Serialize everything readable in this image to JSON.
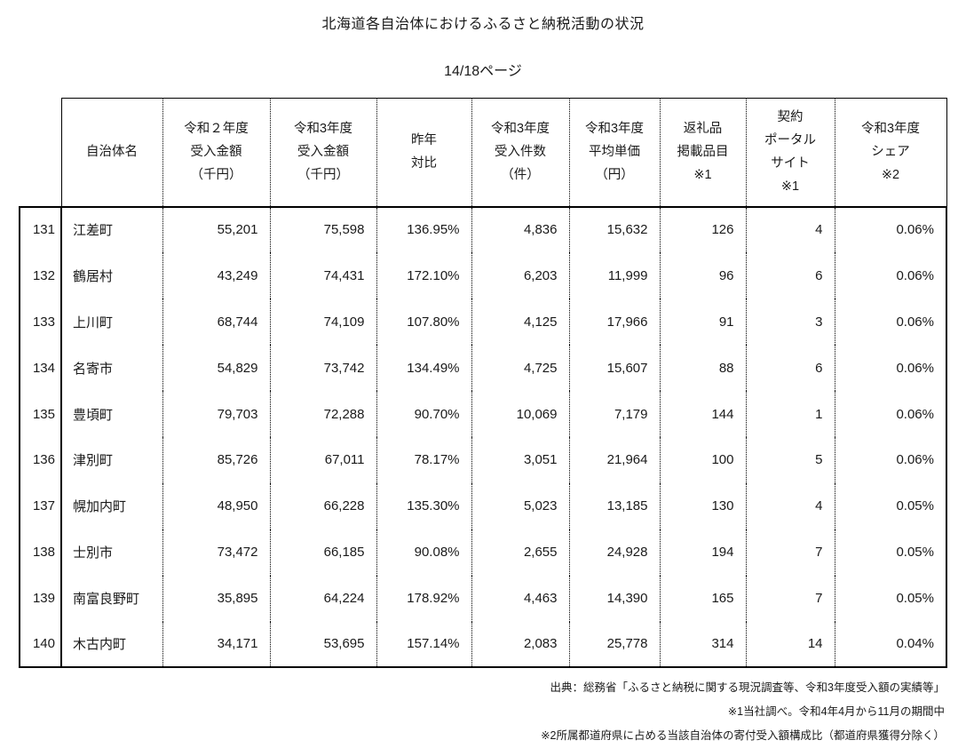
{
  "title": "北海道各自治体におけるふるさと納税活動の状況",
  "page_indicator": "14/18ページ",
  "table": {
    "rank_header": "",
    "columns": [
      {
        "key": "name",
        "label": "自治体名"
      },
      {
        "key": "r2_amount",
        "label": "令和２年度\n受入金額\n（千円）"
      },
      {
        "key": "r3_amount",
        "label": "令和3年度\n受入金額\n（千円）"
      },
      {
        "key": "yoy",
        "label": "昨年\n対比"
      },
      {
        "key": "r3_count",
        "label": "令和3年度\n受入件数\n（件）"
      },
      {
        "key": "r3_avg",
        "label": "令和3年度\n平均単価\n（円）"
      },
      {
        "key": "gift_items",
        "label": "返礼品\n掲載品目\n※1"
      },
      {
        "key": "portal_sites",
        "label": "契約\nポータル\nサイト\n※1"
      },
      {
        "key": "r3_share",
        "label": "令和3年度\nシェア\n※2"
      }
    ],
    "rows": [
      {
        "rank": "131",
        "name": "江差町",
        "r2_amount": "55,201",
        "r3_amount": "75,598",
        "yoy": "136.95%",
        "r3_count": "4,836",
        "r3_avg": "15,632",
        "gift_items": "126",
        "portal_sites": "4",
        "r3_share": "0.06%"
      },
      {
        "rank": "132",
        "name": "鶴居村",
        "r2_amount": "43,249",
        "r3_amount": "74,431",
        "yoy": "172.10%",
        "r3_count": "6,203",
        "r3_avg": "11,999",
        "gift_items": "96",
        "portal_sites": "6",
        "r3_share": "0.06%"
      },
      {
        "rank": "133",
        "name": "上川町",
        "r2_amount": "68,744",
        "r3_amount": "74,109",
        "yoy": "107.80%",
        "r3_count": "4,125",
        "r3_avg": "17,966",
        "gift_items": "91",
        "portal_sites": "3",
        "r3_share": "0.06%"
      },
      {
        "rank": "134",
        "name": "名寄市",
        "r2_amount": "54,829",
        "r3_amount": "73,742",
        "yoy": "134.49%",
        "r3_count": "4,725",
        "r3_avg": "15,607",
        "gift_items": "88",
        "portal_sites": "6",
        "r3_share": "0.06%"
      },
      {
        "rank": "135",
        "name": "豊頃町",
        "r2_amount": "79,703",
        "r3_amount": "72,288",
        "yoy": "90.70%",
        "r3_count": "10,069",
        "r3_avg": "7,179",
        "gift_items": "144",
        "portal_sites": "1",
        "r3_share": "0.06%"
      },
      {
        "rank": "136",
        "name": "津別町",
        "r2_amount": "85,726",
        "r3_amount": "67,011",
        "yoy": "78.17%",
        "r3_count": "3,051",
        "r3_avg": "21,964",
        "gift_items": "100",
        "portal_sites": "5",
        "r3_share": "0.06%"
      },
      {
        "rank": "137",
        "name": "幌加内町",
        "r2_amount": "48,950",
        "r3_amount": "66,228",
        "yoy": "135.30%",
        "r3_count": "5,023",
        "r3_avg": "13,185",
        "gift_items": "130",
        "portal_sites": "4",
        "r3_share": "0.05%"
      },
      {
        "rank": "138",
        "name": "士別市",
        "r2_amount": "73,472",
        "r3_amount": "66,185",
        "yoy": "90.08%",
        "r3_count": "2,655",
        "r3_avg": "24,928",
        "gift_items": "194",
        "portal_sites": "7",
        "r3_share": "0.05%"
      },
      {
        "rank": "139",
        "name": "南富良野町",
        "r2_amount": "35,895",
        "r3_amount": "64,224",
        "yoy": "178.92%",
        "r3_count": "4,463",
        "r3_avg": "14,390",
        "gift_items": "165",
        "portal_sites": "7",
        "r3_share": "0.05%"
      },
      {
        "rank": "140",
        "name": "木古内町",
        "r2_amount": "34,171",
        "r3_amount": "53,695",
        "yoy": "157.14%",
        "r3_count": "2,083",
        "r3_avg": "25,778",
        "gift_items": "314",
        "portal_sites": "14",
        "r3_share": "0.04%"
      }
    ]
  },
  "footnotes": [
    "出典：総務省「ふるさと納税に関する現況調査等、令和3年度受入額の実績等」",
    "※1当社調べ。令和4年4月から11月の期間中",
    "※2所属都道府県に占める当該自治体の寄付受入額構成比（都道府県獲得分除く）"
  ]
}
